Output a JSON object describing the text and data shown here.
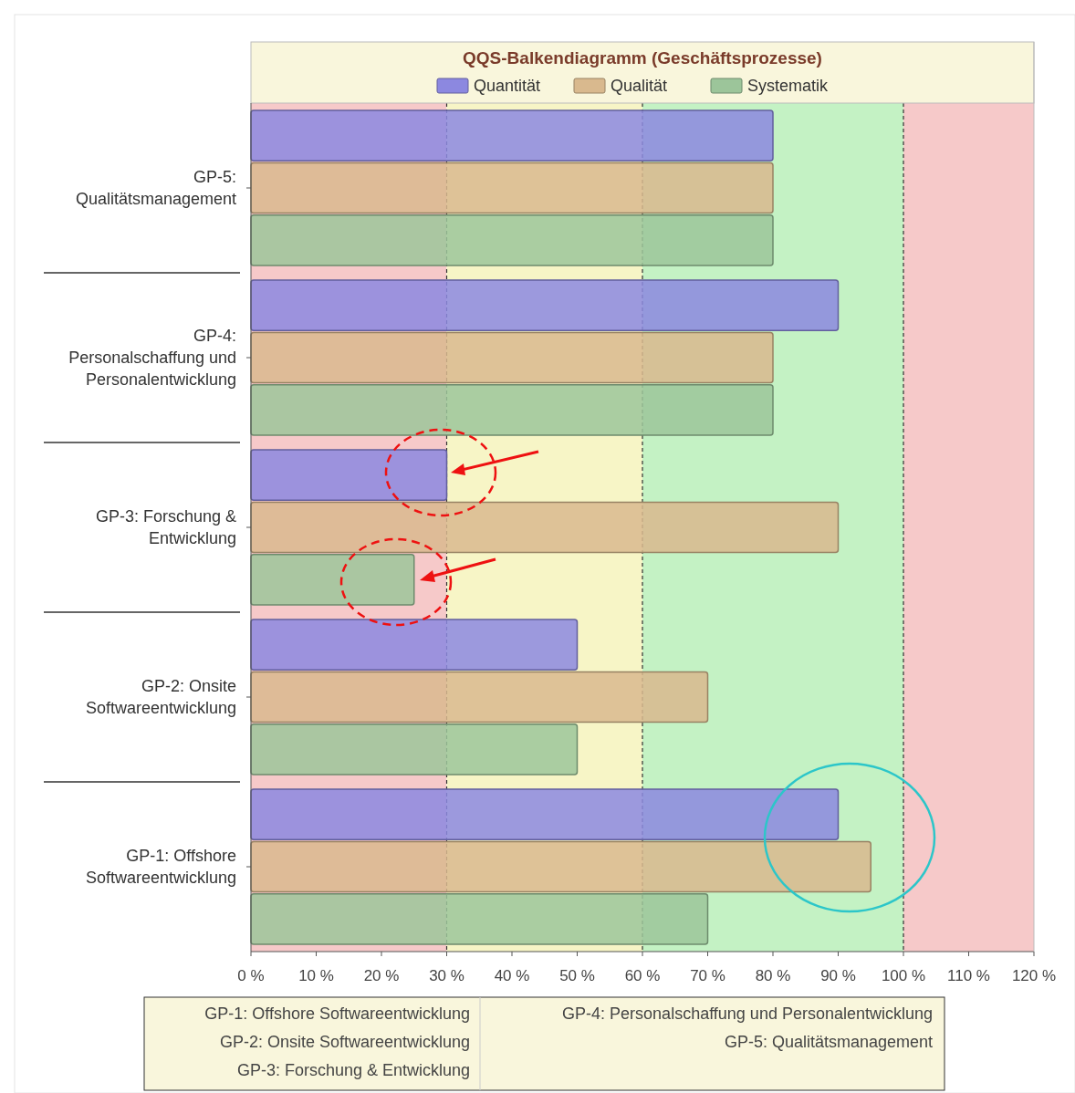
{
  "chart_data": {
    "type": "bar",
    "orientation": "horizontal",
    "title": "QQS-Balkendiagramm (Geschäftsprozesse)",
    "categories": [
      "GP-5:\nQualitätsmanagement",
      "GP-4:\nPersonalschaffung und\nPersonalentwicklung",
      "GP-3: Forschung &\nEntwicklung",
      "GP-2: Onsite\nSoftwareentwicklung",
      "GP-1: Offshore\nSoftwareentwicklung"
    ],
    "series": [
      {
        "name": "Quantität",
        "color": "#8c88e0",
        "values": [
          80,
          90,
          30,
          50,
          90
        ]
      },
      {
        "name": "Qualität",
        "color": "#d9b98e",
        "values": [
          80,
          80,
          90,
          70,
          95
        ]
      },
      {
        "name": "Systematik",
        "color": "#9cc59a",
        "values": [
          80,
          80,
          25,
          50,
          70
        ]
      }
    ],
    "xlim": [
      0,
      120
    ],
    "xticks": [
      {
        "value": 0,
        "label": "0 %"
      },
      {
        "value": 10,
        "label": "10 %"
      },
      {
        "value": 20,
        "label": "20 %"
      },
      {
        "value": 30,
        "label": "30 %"
      },
      {
        "value": 40,
        "label": "40 %"
      },
      {
        "value": 50,
        "label": "50 %"
      },
      {
        "value": 60,
        "label": "60 %"
      },
      {
        "value": 70,
        "label": "70 %"
      },
      {
        "value": 80,
        "label": "80 %"
      },
      {
        "value": 90,
        "label": "90 %"
      },
      {
        "value": 100,
        "label": "100 %"
      },
      {
        "value": 110,
        "label": "110 %"
      },
      {
        "value": 120,
        "label": "120 %"
      }
    ],
    "bands": [
      {
        "axis": "x",
        "from": 0,
        "to": 30,
        "color": "#f6c9c9"
      },
      {
        "axis": "x",
        "from": 30,
        "to": 60,
        "color": "#f7f5c6"
      },
      {
        "axis": "x",
        "from": 60,
        "to": 100,
        "color": "#c4f2c4"
      },
      {
        "axis": "x",
        "from": 100,
        "to": 120,
        "color": "#f6c9c9"
      }
    ],
    "ref_lines": [
      {
        "axis": "x",
        "value": 30,
        "color": "#333333",
        "line_style": "dashed"
      },
      {
        "axis": "x",
        "value": 60,
        "color": "#333333",
        "line_style": "dashed"
      },
      {
        "axis": "x",
        "value": 100,
        "color": "#333333",
        "line_style": "dashed"
      }
    ],
    "legend": "top",
    "grid": false,
    "annotations": [
      "GP-1: Offshore Softwareentwicklung",
      "GP-2: Onsite Softwareentwicklung",
      "GP-3: Forschung & Entwicklung",
      "GP-4: Personalschaffung und Personalentwicklung",
      "GP-5: Qualitätsmanagement"
    ]
  }
}
